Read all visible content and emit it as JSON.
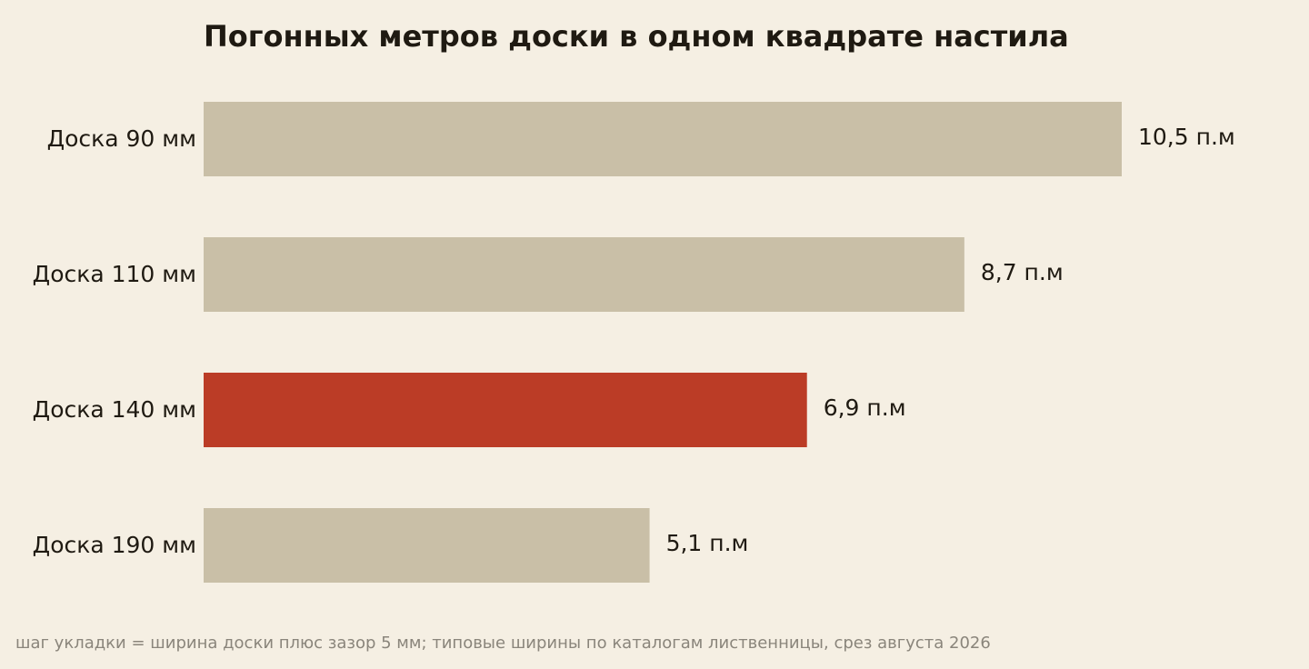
{
  "chart_data": {
    "type": "bar",
    "orientation": "horizontal",
    "title": "Погонных метров доски в одном квадрате настила",
    "categories": [
      "Доска 90 мм",
      "Доска 110 мм",
      "Доска 140 мм",
      "Доска 190 мм"
    ],
    "values": [
      10.5,
      8.7,
      6.9,
      5.1
    ],
    "value_labels": [
      "10,5 п.м",
      "8,7 п.м",
      "6,9 п.м",
      "5,1 п.м"
    ],
    "highlight_index": 2,
    "xlim": [
      0,
      10.5
    ],
    "grid": false,
    "xlabel": "",
    "ylabel": "",
    "colors": {
      "bar": "#c9bfa7",
      "highlight": "#bb3c26",
      "text": "#1f1a12",
      "background": "#f5efe3"
    }
  },
  "footnote": "шаг укладки = ширина доски плюс зазор 5 мм; типовые ширины по каталогам лиственницы, срез августа 2026"
}
